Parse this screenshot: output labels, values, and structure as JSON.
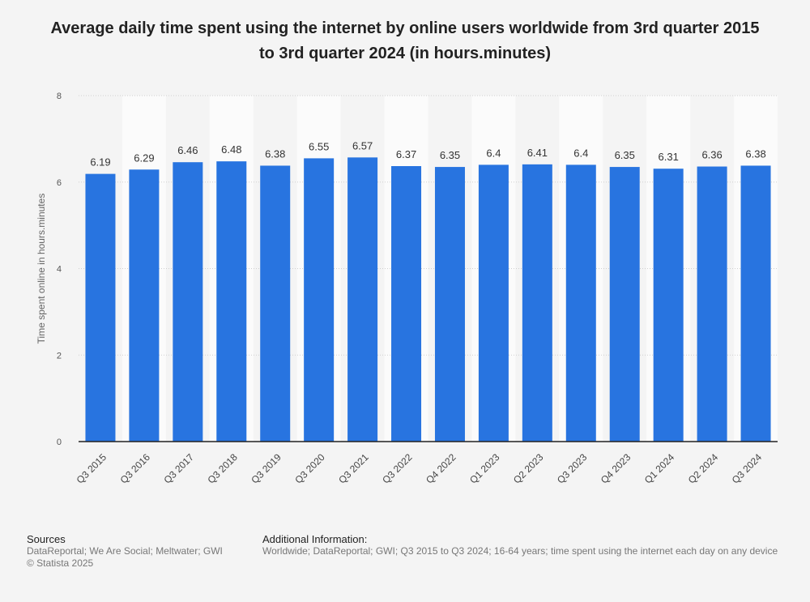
{
  "chart_data": {
    "type": "bar",
    "title": "Average daily time spent using the internet by online users worldwide from 3rd quarter 2015 to 3rd quarter 2024 (in hours.minutes)",
    "xlabel": "",
    "ylabel": "Time spent online in hours.minutes",
    "ylim": [
      0,
      8
    ],
    "yticks": [
      0,
      2,
      4,
      6,
      8
    ],
    "grid": true,
    "categories": [
      "Q3 2015",
      "Q3 2016",
      "Q3 2017",
      "Q3 2018",
      "Q3 2019",
      "Q3 2020",
      "Q3 2021",
      "Q3 2022",
      "Q4 2022",
      "Q1 2023",
      "Q2 2023",
      "Q3 2023",
      "Q4 2023",
      "Q1 2024",
      "Q2 2024",
      "Q3 2024"
    ],
    "values": [
      6.19,
      6.29,
      6.46,
      6.48,
      6.38,
      6.55,
      6.57,
      6.37,
      6.35,
      6.4,
      6.41,
      6.4,
      6.35,
      6.31,
      6.36,
      6.38
    ],
    "value_labels": [
      "6.19",
      "6.29",
      "6.46",
      "6.48",
      "6.38",
      "6.55",
      "6.57",
      "6.37",
      "6.35",
      "6.4",
      "6.41",
      "6.4",
      "6.35",
      "6.31",
      "6.36",
      "6.38"
    ],
    "bar_color": "#2874e0"
  },
  "footer": {
    "sources_heading": "Sources",
    "sources_line1": "DataReportal; We Are Social; Meltwater; GWI",
    "sources_line2": "© Statista 2025",
    "additional_heading": "Additional Information:",
    "additional_line1": "Worldwide; DataReportal; GWI; Q3 2015 to Q3 2024; 16-64 years; time spent using the internet each day on any device"
  }
}
